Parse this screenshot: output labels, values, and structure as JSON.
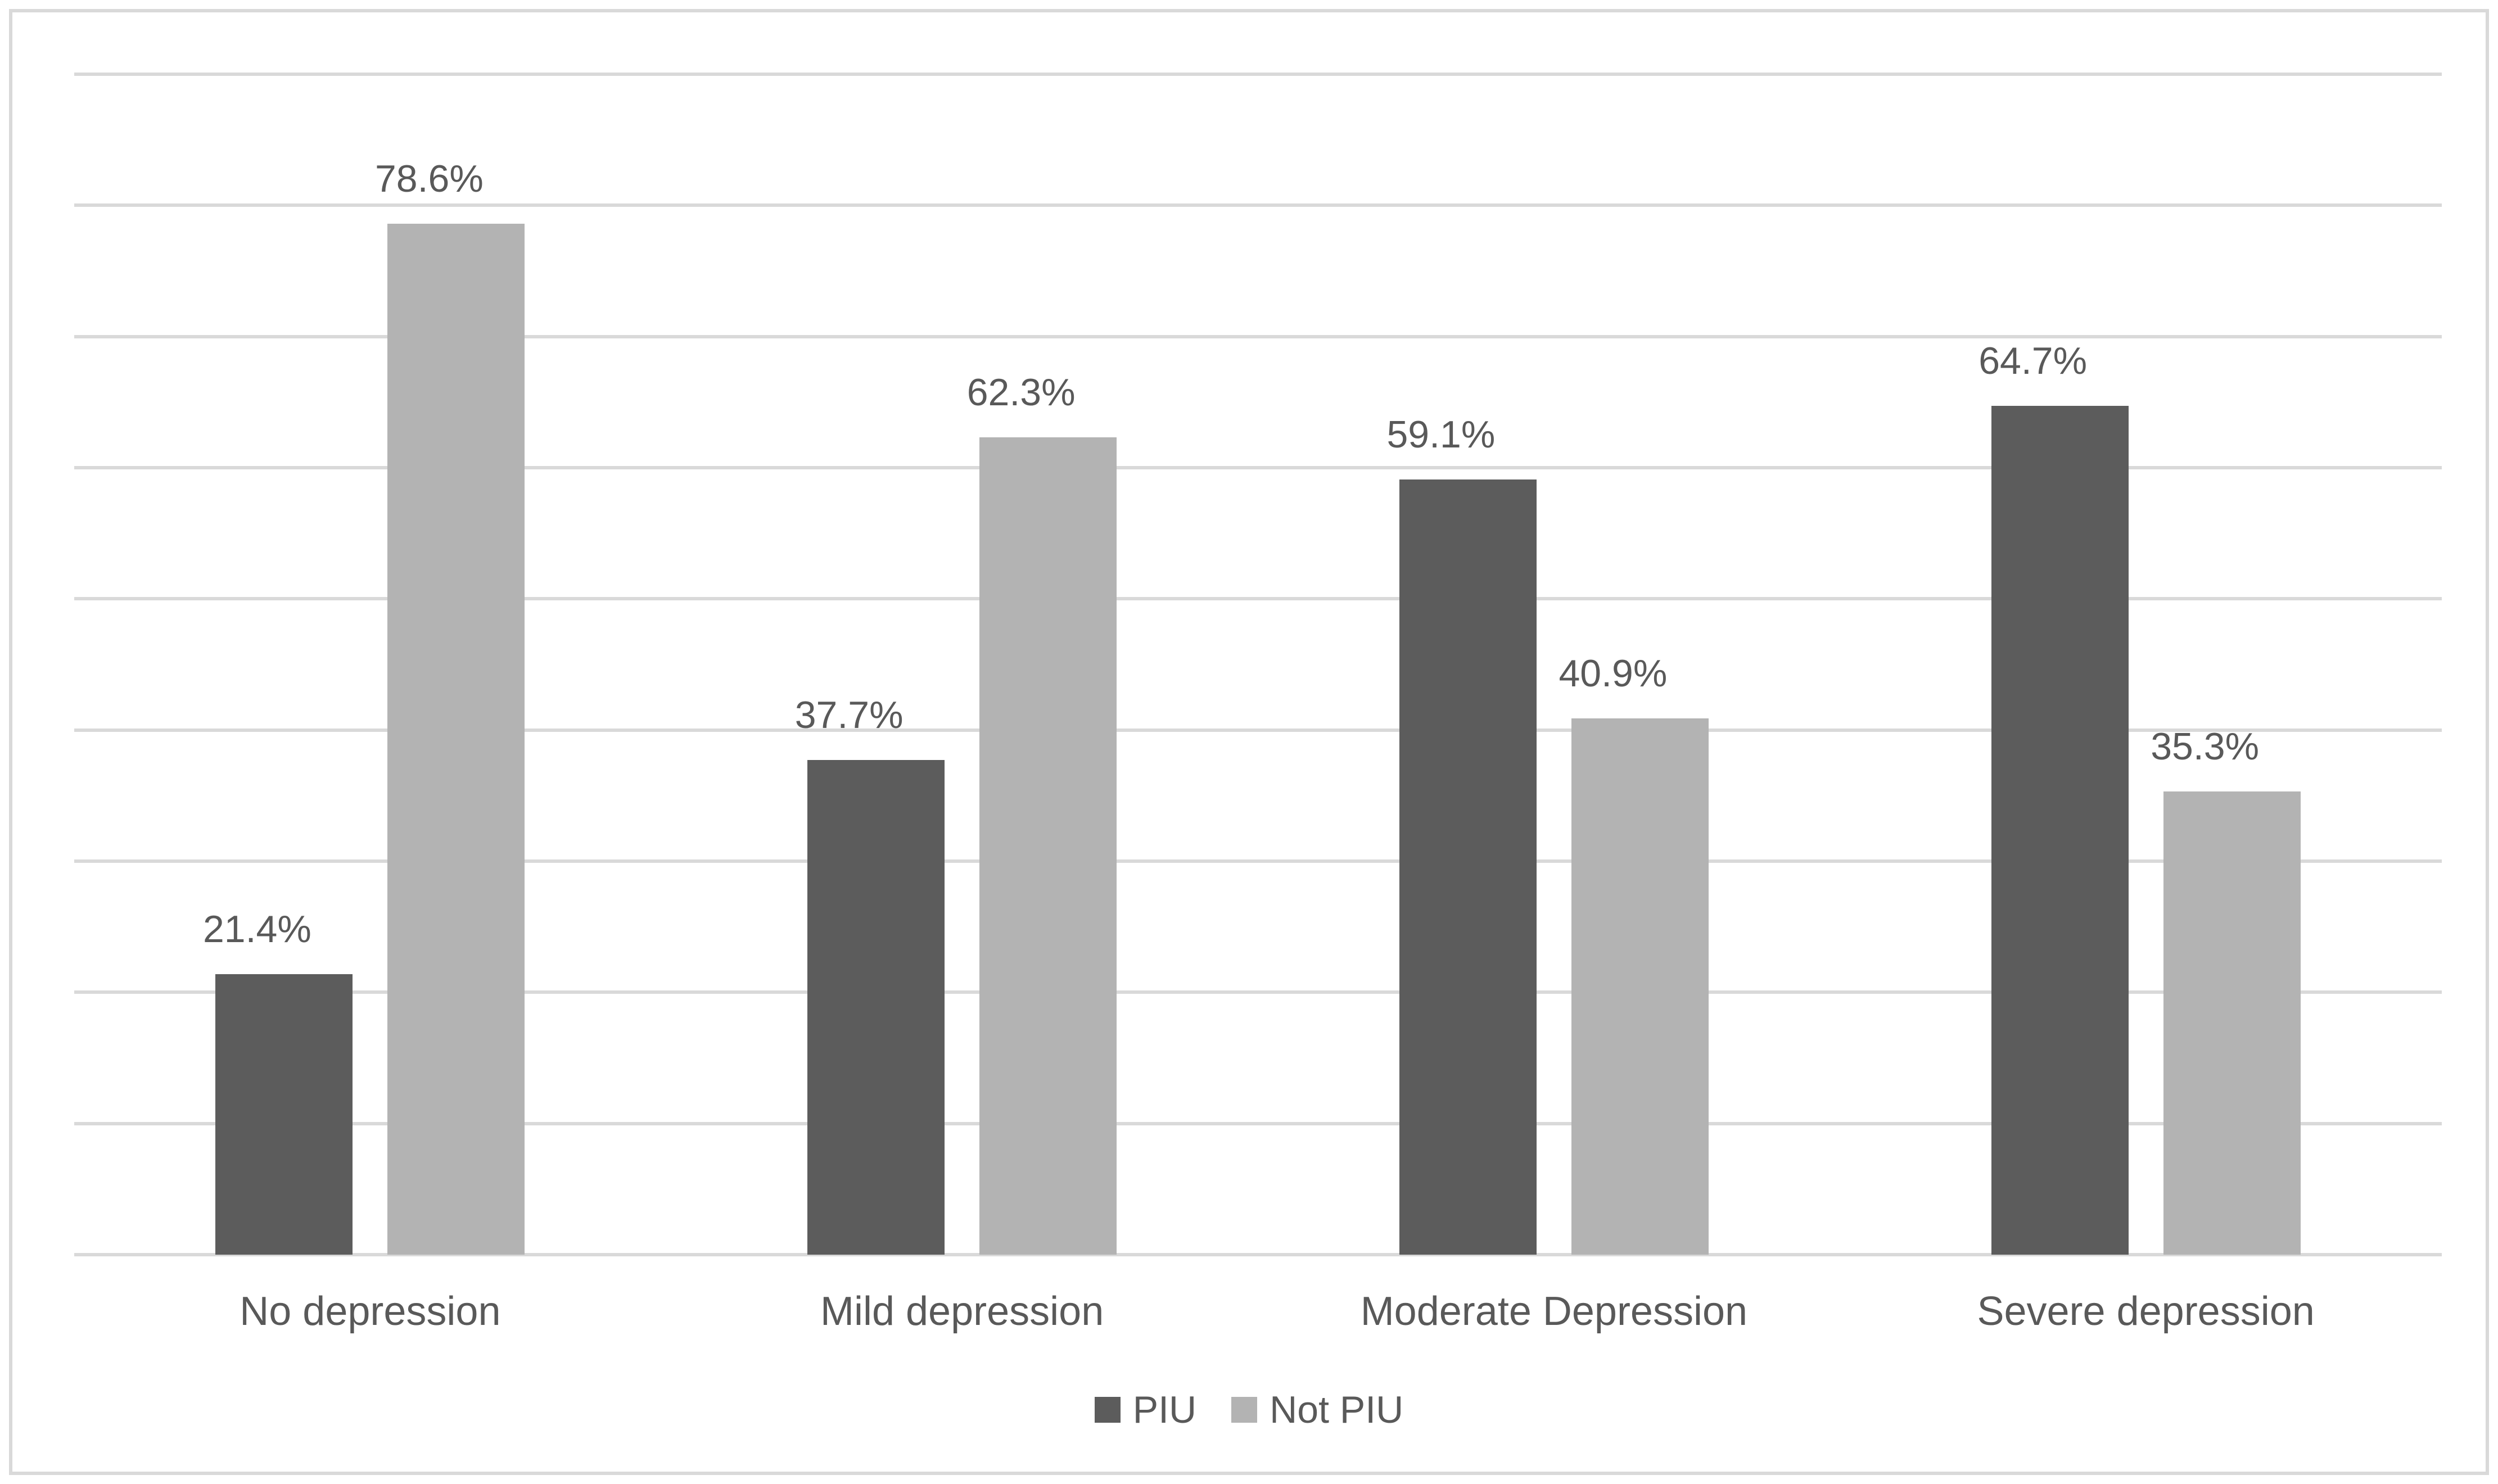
{
  "chart_data": {
    "type": "bar",
    "subtype": "clustered-column",
    "title": "",
    "xlabel": "",
    "ylabel": "",
    "categories": [
      "No depression",
      "Mild depression",
      "Moderate Depression",
      "Severe depression"
    ],
    "series": [
      {
        "name": "PIU",
        "color": "#5c5c5c",
        "values": [
          21.4,
          37.7,
          59.1,
          64.7
        ],
        "data_labels": [
          "21.4%",
          "37.7%",
          "59.1%",
          "64.7%"
        ]
      },
      {
        "name": "Not PIU",
        "color": "#b3b3b3",
        "values": [
          78.6,
          62.3,
          40.9,
          35.3
        ],
        "data_labels": [
          "78.6%",
          "62.3%",
          "40.9%",
          "35.3%"
        ]
      }
    ],
    "ylim": [
      0,
      90
    ],
    "gridline_step": 10,
    "grid": true,
    "y_axis_tick_labels_visible": false,
    "data_label_position": "outside-end",
    "legend_position": "bottom-center"
  },
  "style": {
    "background_color": "#ffffff",
    "frame_border_color": "#d9d9d9",
    "gridline_color": "#d9d9d9",
    "axis_line_color": "#d9d9d9",
    "text_color": "#595959"
  }
}
